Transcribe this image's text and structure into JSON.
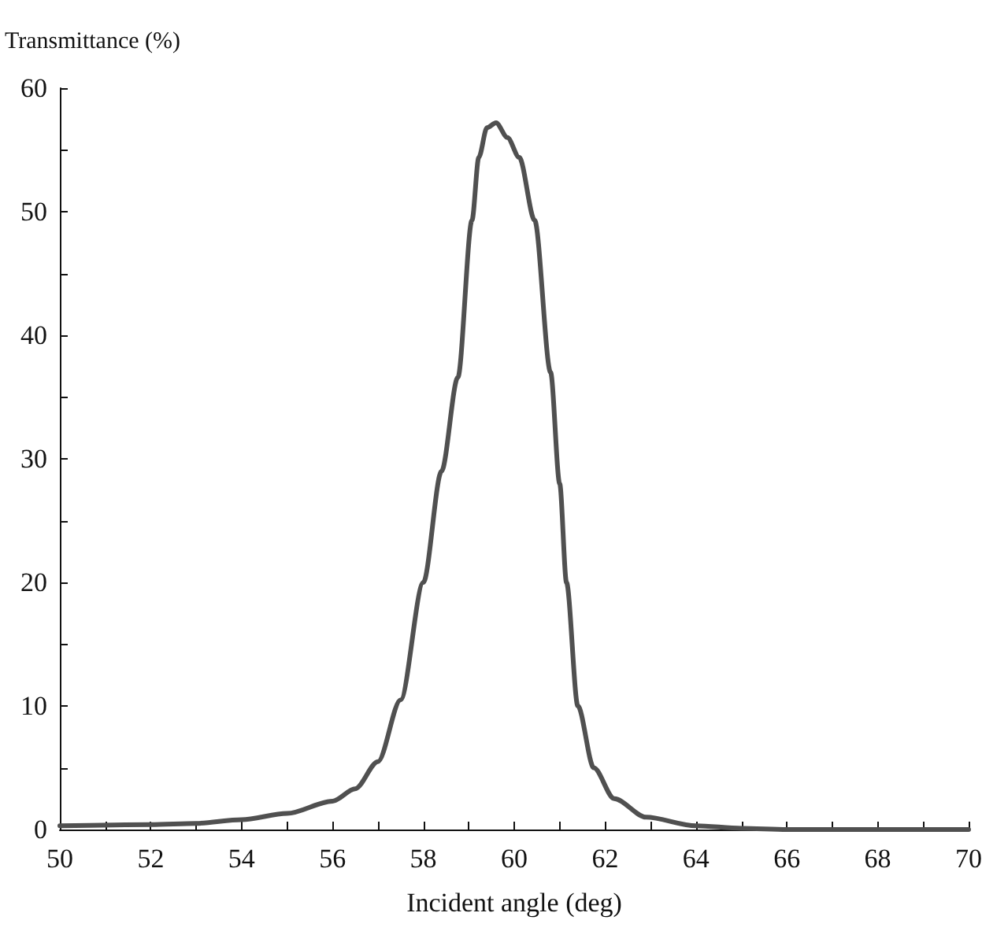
{
  "chart_data": {
    "type": "line",
    "xlabel": "Incident angle (deg)",
    "ylabel": "Transmittance (%)",
    "color": "#505050",
    "x": [
      50,
      52,
      53,
      54,
      55,
      56,
      56.5,
      57,
      57.5,
      58,
      58.4,
      58.76,
      59.07,
      59.22,
      59.4,
      59.6,
      59.85,
      60.11,
      60.45,
      60.8,
      61.0,
      61.15,
      61.4,
      61.75,
      62.2,
      62.9,
      64,
      65,
      66,
      68,
      70
    ],
    "values": [
      0.3,
      0.4,
      0.5,
      0.8,
      1.3,
      2.3,
      3.3,
      5.5,
      10.5,
      20,
      29,
      36.6,
      49.3,
      54.4,
      56.8,
      57.2,
      56,
      54.4,
      49.3,
      37,
      28,
      20,
      10,
      5,
      2.5,
      1,
      0.3,
      0.1,
      0,
      0,
      0
    ],
    "xlim": [
      50,
      70
    ],
    "xticks": [
      50,
      52,
      54,
      56,
      58,
      60,
      62,
      64,
      66,
      68,
      70
    ],
    "ylim": [
      0,
      60
    ],
    "yticks": [
      0,
      10,
      20,
      30,
      40,
      50,
      60
    ],
    "grid": false,
    "marker": "none",
    "line_style": "solid"
  }
}
